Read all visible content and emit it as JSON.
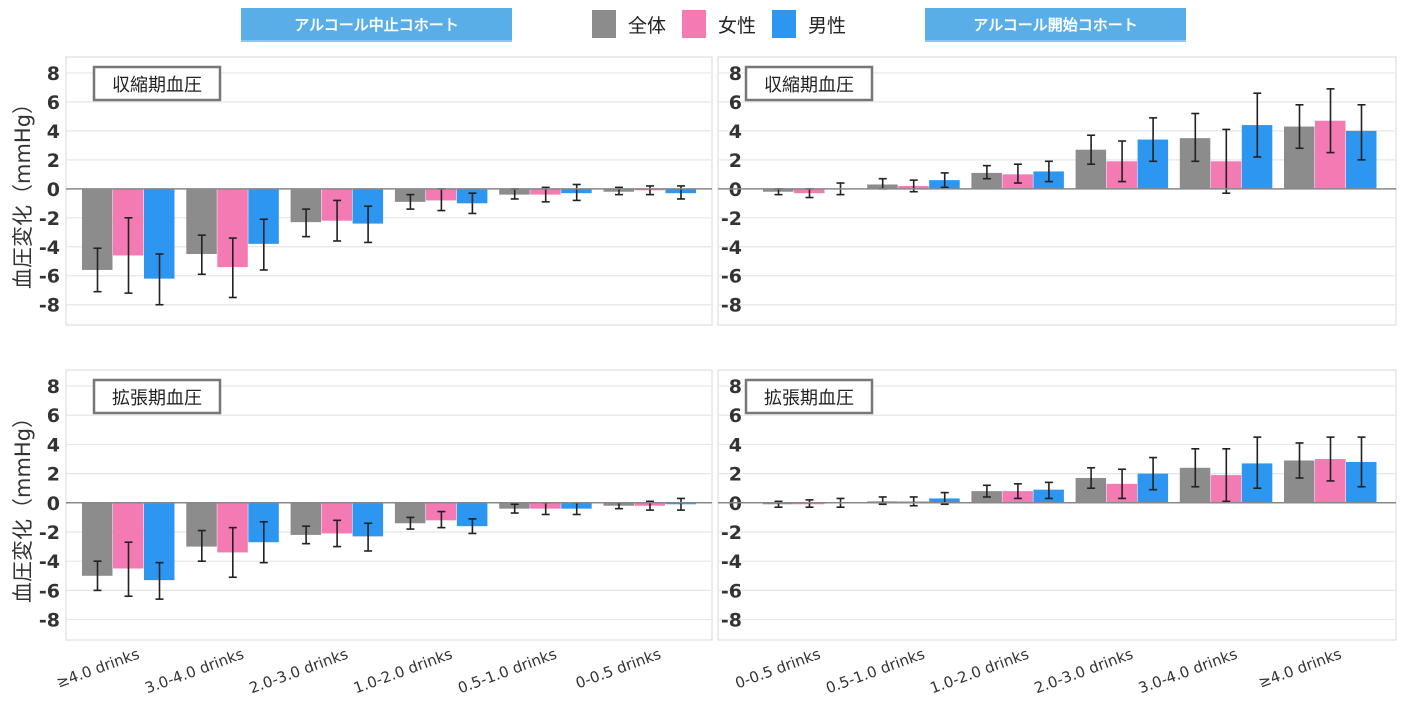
{
  "header": {
    "left_banner": "アルコール中止コホート",
    "right_banner": "アルコール開始コホート"
  },
  "legend": [
    {
      "label": "全体",
      "color": "#8c8c8c"
    },
    {
      "label": "女性",
      "color": "#f47ab4"
    },
    {
      "label": "男性",
      "color": "#2d96f0"
    }
  ],
  "chart_data": [
    {
      "type": "bar",
      "cohort": "アルコール中止コホート",
      "title": "収縮期血圧",
      "ylabel": "血圧変化（mmHg）",
      "ylim": [
        -9.4,
        9.1
      ],
      "yticks": [
        8,
        6,
        4,
        2,
        0,
        -2,
        -4,
        -6,
        -8
      ],
      "categories": [
        "≥4.0 drinks",
        "3.0-4.0 drinks",
        "2.0-3.0 drinks",
        "1.0-2.0 drinks",
        "0.5-1.0 drinks",
        "0-0.5 drinks"
      ],
      "series": [
        {
          "name": "全体",
          "values": [
            -5.6,
            -4.5,
            -2.3,
            -0.9,
            -0.4,
            -0.2
          ],
          "low": [
            -7.1,
            -5.9,
            -3.3,
            -1.4,
            -0.7,
            -0.4
          ],
          "high": [
            -4.1,
            -3.2,
            -1.4,
            -0.4,
            0.0,
            0.1
          ]
        },
        {
          "name": "女性",
          "values": [
            -4.6,
            -5.4,
            -2.2,
            -0.8,
            -0.4,
            -0.1
          ],
          "low": [
            -7.2,
            -7.5,
            -3.6,
            -1.5,
            -0.9,
            -0.4
          ],
          "high": [
            -2.0,
            -3.4,
            -0.8,
            0.0,
            0.1,
            0.2
          ]
        },
        {
          "name": "男性",
          "values": [
            -6.2,
            -3.8,
            -2.4,
            -1.0,
            -0.3,
            -0.3
          ],
          "low": [
            -8.0,
            -5.6,
            -3.7,
            -1.7,
            -0.8,
            -0.7
          ],
          "high": [
            -4.5,
            -2.1,
            -1.2,
            -0.3,
            0.3,
            0.2
          ]
        }
      ]
    },
    {
      "type": "bar",
      "cohort": "アルコール開始コホート",
      "title": "収縮期血圧",
      "ylabel": "",
      "ylim": [
        -9.4,
        9.1
      ],
      "yticks": [
        8,
        6,
        4,
        2,
        0,
        -2,
        -4,
        -6,
        -8
      ],
      "categories": [
        "0-0.5 drinks",
        "0.5-1.0 drinks",
        "1.0-2.0 drinks",
        "2.0-3.0 drinks",
        "3.0-4.0 drinks",
        "≥4.0 drinks"
      ],
      "series": [
        {
          "name": "全体",
          "values": [
            -0.2,
            0.3,
            1.1,
            2.7,
            3.5,
            4.3
          ],
          "low": [
            -0.4,
            0.0,
            0.7,
            1.7,
            1.9,
            2.8
          ],
          "high": [
            0.0,
            0.7,
            1.6,
            3.7,
            5.2,
            5.8
          ]
        },
        {
          "name": "女性",
          "values": [
            -0.3,
            0.2,
            1.0,
            1.9,
            1.9,
            4.7
          ],
          "low": [
            -0.6,
            -0.2,
            0.4,
            0.5,
            -0.3,
            2.5
          ],
          "high": [
            0.0,
            0.6,
            1.7,
            3.3,
            4.1,
            6.9
          ]
        },
        {
          "name": "男性",
          "values": [
            0.0,
            0.6,
            1.2,
            3.4,
            4.4,
            4.0
          ],
          "low": [
            -0.4,
            0.1,
            0.5,
            1.9,
            2.2,
            2.0
          ],
          "high": [
            0.4,
            1.1,
            1.9,
            4.9,
            6.6,
            5.8
          ]
        }
      ]
    },
    {
      "type": "bar",
      "cohort": "アルコール中止コホート",
      "title": "拡張期血圧",
      "ylabel": "血圧変化（mmHg）",
      "ylim": [
        -9.4,
        9.1
      ],
      "yticks": [
        8,
        6,
        4,
        2,
        0,
        -2,
        -4,
        -6,
        -8
      ],
      "categories": [
        "≥4.0 drinks",
        "3.0-4.0 drinks",
        "2.0-3.0 drinks",
        "1.0-2.0 drinks",
        "0.5-1.0 drinks",
        "0-0.5 drinks"
      ],
      "series": [
        {
          "name": "全体",
          "values": [
            -5.0,
            -3.0,
            -2.2,
            -1.4,
            -0.4,
            -0.2
          ],
          "low": [
            -6.0,
            -4.0,
            -2.8,
            -1.8,
            -0.7,
            -0.4
          ],
          "high": [
            -4.0,
            -1.9,
            -1.6,
            -1.0,
            -0.1,
            0.0
          ]
        },
        {
          "name": "女性",
          "values": [
            -4.5,
            -3.4,
            -2.1,
            -1.2,
            -0.4,
            -0.2
          ],
          "low": [
            -6.4,
            -5.1,
            -3.0,
            -1.7,
            -0.8,
            -0.5
          ],
          "high": [
            -2.7,
            -1.7,
            -1.2,
            -0.6,
            0.0,
            0.1
          ]
        },
        {
          "name": "男性",
          "values": [
            -5.3,
            -2.7,
            -2.3,
            -1.6,
            -0.4,
            -0.1
          ],
          "low": [
            -6.6,
            -4.1,
            -3.3,
            -2.1,
            -0.8,
            -0.5
          ],
          "high": [
            -4.1,
            -1.3,
            -1.4,
            -1.1,
            0.0,
            0.3
          ]
        }
      ]
    },
    {
      "type": "bar",
      "cohort": "アルコール開始コホート",
      "title": "拡張期血圧",
      "ylabel": "",
      "ylim": [
        -9.4,
        9.1
      ],
      "yticks": [
        8,
        6,
        4,
        2,
        0,
        -2,
        -4,
        -6,
        -8
      ],
      "categories": [
        "0-0.5 drinks",
        "0.5-1.0 drinks",
        "1.0-2.0 drinks",
        "2.0-3.0 drinks",
        "3.0-4.0 drinks",
        "≥4.0 drinks"
      ],
      "series": [
        {
          "name": "全体",
          "values": [
            -0.1,
            0.1,
            0.8,
            1.7,
            2.4,
            2.9
          ],
          "low": [
            -0.3,
            -0.1,
            0.4,
            1.0,
            1.1,
            1.7
          ],
          "high": [
            0.1,
            0.4,
            1.2,
            2.4,
            3.7,
            4.1
          ]
        },
        {
          "name": "女性",
          "values": [
            -0.1,
            0.1,
            0.8,
            1.3,
            1.9,
            3.0
          ],
          "low": [
            -0.3,
            -0.2,
            0.3,
            0.3,
            0.1,
            1.5
          ],
          "high": [
            0.2,
            0.4,
            1.3,
            2.3,
            3.7,
            4.5
          ]
        },
        {
          "name": "男性",
          "values": [
            0.0,
            0.3,
            0.9,
            2.0,
            2.7,
            2.8
          ],
          "low": [
            -0.3,
            -0.1,
            0.3,
            0.9,
            1.0,
            1.1
          ],
          "high": [
            0.3,
            0.7,
            1.4,
            3.1,
            4.5,
            4.5
          ]
        }
      ]
    }
  ]
}
